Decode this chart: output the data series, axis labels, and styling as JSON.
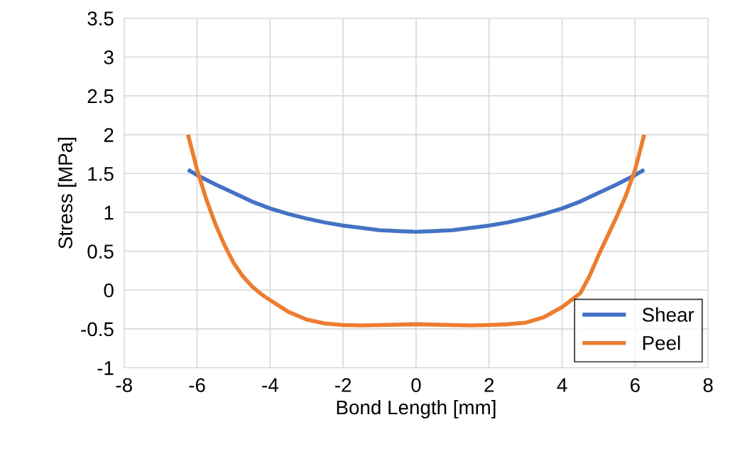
{
  "chart_data": {
    "type": "line",
    "xlabel": "Bond Length [mm]",
    "ylabel": "Stress [MPa]",
    "xlim": [
      -8,
      8
    ],
    "xticks": [
      -8,
      -6,
      -4,
      -2,
      0,
      2,
      4,
      6,
      8
    ],
    "ylim": [
      -1,
      3.5
    ],
    "yticks": [
      -1,
      -0.5,
      0,
      0.5,
      1,
      1.5,
      2,
      2.5,
      3,
      3.5
    ],
    "grid": true,
    "legend": "bottom right",
    "marker": "none",
    "line_style": "solid",
    "series": [
      {
        "name": "Shear",
        "color": "#4472c4",
        "x": [
          -6.25,
          -6,
          -5.5,
          -5,
          -4.5,
          -4,
          -3.5,
          -3,
          -2.5,
          -2,
          -1.5,
          -1,
          -0.5,
          0,
          0.5,
          1,
          1.5,
          2,
          2.5,
          3,
          3.5,
          4,
          4.5,
          5,
          5.5,
          6,
          6.25
        ],
        "values": [
          1.55,
          1.48,
          1.36,
          1.25,
          1.14,
          1.05,
          0.98,
          0.92,
          0.87,
          0.83,
          0.8,
          0.77,
          0.76,
          0.75,
          0.76,
          0.77,
          0.8,
          0.83,
          0.87,
          0.92,
          0.98,
          1.05,
          1.14,
          1.25,
          1.36,
          1.48,
          1.55
        ]
      },
      {
        "name": "Peel",
        "color": "#ed7d31",
        "x": [
          -6.25,
          -6,
          -5.75,
          -5.5,
          -5.25,
          -5,
          -4.75,
          -4.5,
          -4.25,
          -4,
          -3.5,
          -3,
          -2.5,
          -2,
          -1.5,
          -1,
          0,
          1,
          1.5,
          2,
          2.5,
          3,
          3.5,
          4,
          4.25,
          4.5,
          4.75,
          5,
          5.25,
          5.5,
          5.75,
          6,
          6.25
        ],
        "values": [
          2.0,
          1.55,
          1.17,
          0.85,
          0.58,
          0.35,
          0.18,
          0.05,
          -0.05,
          -0.13,
          -0.28,
          -0.38,
          -0.43,
          -0.45,
          -0.455,
          -0.45,
          -0.44,
          -0.45,
          -0.455,
          -0.45,
          -0.44,
          -0.42,
          -0.35,
          -0.22,
          -0.13,
          -0.04,
          0.18,
          0.45,
          0.7,
          0.95,
          1.22,
          1.55,
          2.0
        ]
      }
    ]
  }
}
